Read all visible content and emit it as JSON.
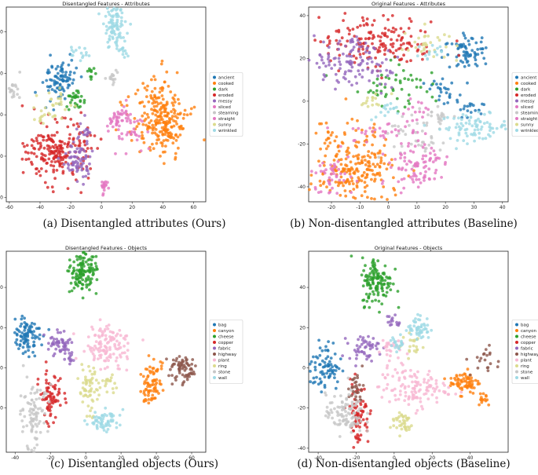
{
  "colors": {
    "tab10": [
      "#1f77b4",
      "#ff7f0e",
      "#2ca02c",
      "#d62728",
      "#9467bd",
      "#8c564b",
      "#e377c2",
      "#7f7f7f",
      "#bcbd22",
      "#17becf"
    ],
    "attribute_colors": [
      "#1f77b4",
      "#ff7f0e",
      "#2ca02c",
      "#d62728",
      "#9467bd",
      "#e377c2",
      "#c7c7c7",
      "#e377c2",
      "#dbdb8d",
      "#9edae5"
    ],
    "object_colors": [
      "#1f77b4",
      "#ff7f0e",
      "#2ca02c",
      "#d62728",
      "#9467bd",
      "#8c564b",
      "#f7b6d2",
      "#dbdb8d",
      "#c7c7c7",
      "#9edae5"
    ]
  },
  "captions": {
    "a": "(a) Disentangled attributes (Ours)",
    "b": "(b) Non-disentangled attributes (Baseline)",
    "c": "(c) Disentangled objects (Ours)",
    "d": "(d) Non-disentangled objects (Baseline)"
  },
  "chart_data": [
    {
      "type": "scatter",
      "title": "Disentangled Features - Attributes",
      "xlim": [
        -62,
        68
      ],
      "ylim": [
        -42,
        52
      ],
      "xticks": [
        -60,
        -40,
        -20,
        0,
        20,
        40,
        60
      ],
      "yticks": [
        -40,
        -20,
        0,
        20,
        40
      ],
      "legend": "right",
      "series": [
        {
          "name": "ancient",
          "clusters": [
            [
              -27,
              17,
              5,
              5,
              90
            ]
          ]
        },
        {
          "name": "cooked",
          "clusters": [
            [
              38,
              -2,
              9,
              10,
              210
            ],
            [
              42,
              -8,
              6,
              6,
              40
            ]
          ]
        },
        {
          "name": "dark",
          "clusters": [
            [
              -17,
              7,
              3,
              3,
              30
            ],
            [
              -6,
              20,
              2,
              2,
              10
            ]
          ]
        },
        {
          "name": "eroded",
          "clusters": [
            [
              -28,
              -18,
              10,
              7,
              210
            ]
          ]
        },
        {
          "name": "messy",
          "clusters": [
            [
              -16,
              -22,
              5,
              5,
              70
            ],
            [
              -10,
              -8,
              2,
              3,
              15
            ]
          ]
        },
        {
          "name": "sliced",
          "clusters": [
            [
              9,
              -3,
              3,
              3,
              25
            ]
          ]
        },
        {
          "name": "steaming",
          "clusters": [
            [
              -57,
              12,
              2,
              2,
              18
            ],
            [
              8,
              19,
              2,
              2,
              15
            ]
          ]
        },
        {
          "name": "straight",
          "clusters": [
            [
              17,
              -5,
              6,
              5,
              45
            ],
            [
              2,
              -35,
              2,
              2,
              18
            ]
          ]
        },
        {
          "name": "sunny",
          "clusters": [
            [
              -30,
              5,
              5,
              4,
              28
            ],
            [
              -40,
              -2,
              2,
              2,
              10
            ]
          ]
        },
        {
          "name": "wrinkled",
          "clusters": [
            [
              8,
              42,
              4,
              5,
              90
            ],
            [
              -14,
              30,
              3,
              2,
              15
            ],
            [
              15,
              31,
              2,
              2,
              10
            ]
          ]
        }
      ]
    },
    {
      "type": "scatter",
      "title": "Original Features - Attributes",
      "xlim": [
        -28,
        42
      ],
      "ylim": [
        -47,
        44
      ],
      "xticks": [
        -20,
        -10,
        0,
        10,
        20,
        30,
        40
      ],
      "yticks": [
        -40,
        -20,
        0,
        20,
        40
      ],
      "legend": "right",
      "series": [
        {
          "name": "ancient",
          "clusters": [
            [
              27,
              23,
              4,
              4,
              70
            ],
            [
              20,
              5,
              3,
              3,
              25
            ],
            [
              28,
              -3,
              3,
              3,
              20
            ]
          ]
        },
        {
          "name": "cooked",
          "clusters": [
            [
              -12,
              -30,
              8,
              9,
              230
            ]
          ]
        },
        {
          "name": "dark",
          "clusters": [
            [
              2,
              8,
              7,
              5,
              50
            ]
          ]
        },
        {
          "name": "eroded",
          "clusters": [
            [
              -5,
              28,
              9,
              6,
              160
            ]
          ]
        },
        {
          "name": "messy",
          "clusters": [
            [
              -12,
              18,
              6,
              6,
              120
            ]
          ]
        },
        {
          "name": "sliced",
          "clusters": [
            [
              -5,
              -14,
              8,
              2,
              30
            ],
            [
              10,
              -5,
              3,
              3,
              15
            ]
          ]
        },
        {
          "name": "steaming",
          "clusters": [
            [
              10,
              -18,
              6,
              6,
              40
            ],
            [
              17,
              -7,
              3,
              3,
              20
            ]
          ]
        },
        {
          "name": "straight",
          "clusters": [
            [
              10,
              -30,
              6,
              6,
              90
            ],
            [
              -20,
              -35,
              4,
              6,
              50
            ]
          ]
        },
        {
          "name": "sunny",
          "clusters": [
            [
              13,
              27,
              4,
              4,
              30
            ],
            [
              -5,
              0,
              3,
              2,
              15
            ]
          ]
        },
        {
          "name": "wrinkled",
          "clusters": [
            [
              30,
              -12,
              6,
              3,
              80
            ],
            [
              0,
              -5,
              3,
              2,
              15
            ],
            [
              15,
              23,
              3,
              3,
              15
            ]
          ]
        }
      ]
    },
    {
      "type": "scatter",
      "title": "Disentangled Features - Objects",
      "xlim": [
        -45,
        68
      ],
      "ylim": [
        -42,
        58
      ],
      "xticks": [
        -40,
        -20,
        0,
        20,
        40,
        60
      ],
      "yticks": [
        -20,
        0,
        20,
        40
      ],
      "legend": "right",
      "series": [
        {
          "name": "bag",
          "clusters": [
            [
              -33,
              16,
              4,
              4,
              90
            ]
          ]
        },
        {
          "name": "canyon",
          "clusters": [
            [
              37,
              -7,
              3,
              6,
              80
            ]
          ]
        },
        {
          "name": "cheese",
          "clusters": [
            [
              -2,
              47,
              4,
              5,
              130
            ]
          ]
        },
        {
          "name": "copper",
          "clusters": [
            [
              -20,
              -15,
              3,
              7,
              75
            ]
          ]
        },
        {
          "name": "fabric",
          "clusters": [
            [
              -15,
              12,
              4,
              3,
              55
            ],
            [
              -8,
              4,
              1,
              2,
              10
            ]
          ]
        },
        {
          "name": "highway",
          "clusters": [
            [
              56,
              -1,
              4,
              3,
              70
            ]
          ]
        },
        {
          "name": "plant",
          "clusters": [
            [
              12,
              11,
              6,
              5,
              120
            ]
          ]
        },
        {
          "name": "ring",
          "clusters": [
            [
              3,
              -12,
              4,
              7,
              60
            ],
            [
              12,
              -8,
              2,
              2,
              15
            ]
          ]
        },
        {
          "name": "stone",
          "clusters": [
            [
              -30,
              -24,
              4,
              8,
              90
            ]
          ]
        },
        {
          "name": "wall",
          "clusters": [
            [
              10,
              -26,
              5,
              3,
              60
            ]
          ]
        }
      ]
    },
    {
      "type": "scatter",
      "title": "Original Features - Objects",
      "xlim": [
        -45,
        60
      ],
      "ylim": [
        -42,
        58
      ],
      "xticks": [
        -40,
        -20,
        0,
        20,
        40
      ],
      "yticks": [
        -40,
        -20,
        0,
        20,
        40
      ],
      "legend": "right",
      "series": [
        {
          "name": "bag",
          "clusters": [
            [
              -36,
              1,
              4,
              6,
              80
            ]
          ]
        },
        {
          "name": "canyon",
          "clusters": [
            [
              37,
              -7,
              4,
              3,
              70
            ],
            [
              47,
              -15,
              2,
              2,
              15
            ]
          ]
        },
        {
          "name": "cheese",
          "clusters": [
            [
              -9,
              43,
              4,
              6,
              130
            ]
          ]
        },
        {
          "name": "copper",
          "clusters": [
            [
              -19,
              -23,
              3,
              8,
              80
            ]
          ]
        },
        {
          "name": "fabric",
          "clusters": [
            [
              -16,
              10,
              4,
              3,
              50
            ],
            [
              0,
              23,
              2,
              2,
              15
            ]
          ]
        },
        {
          "name": "highway",
          "clusters": [
            [
              -20,
              -10,
              2,
              4,
              30
            ],
            [
              48,
              3,
              4,
              4,
              20
            ]
          ]
        },
        {
          "name": "plant",
          "clusters": [
            [
              10,
              -10,
              9,
              5,
              120
            ],
            [
              -3,
              10,
              3,
              3,
              25
            ]
          ]
        },
        {
          "name": "ring",
          "clusters": [
            [
              4,
              -27,
              3,
              3,
              40
            ],
            [
              10,
              11,
              3,
              3,
              20
            ]
          ]
        },
        {
          "name": "stone",
          "clusters": [
            [
              -26,
              -23,
              5,
              5,
              100
            ]
          ]
        },
        {
          "name": "wall",
          "clusters": [
            [
              13,
              20,
              3,
              3,
              50
            ],
            [
              2,
              12,
              2,
              2,
              20
            ]
          ]
        }
      ]
    }
  ]
}
